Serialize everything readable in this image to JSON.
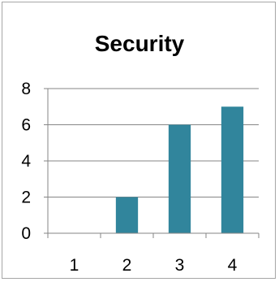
{
  "chart_data": {
    "type": "bar",
    "title": "Security",
    "categories": [
      "1",
      "2",
      "3",
      "4"
    ],
    "values": [
      0,
      2,
      6,
      7
    ],
    "xlabel": "",
    "ylabel": "",
    "ylim": [
      0,
      8
    ],
    "yticks": [
      0,
      2,
      4,
      6,
      8
    ],
    "grid": true,
    "legend": "none",
    "bar_color": "#31859c",
    "grid_color": "#868686",
    "axis_color": "#868686"
  }
}
